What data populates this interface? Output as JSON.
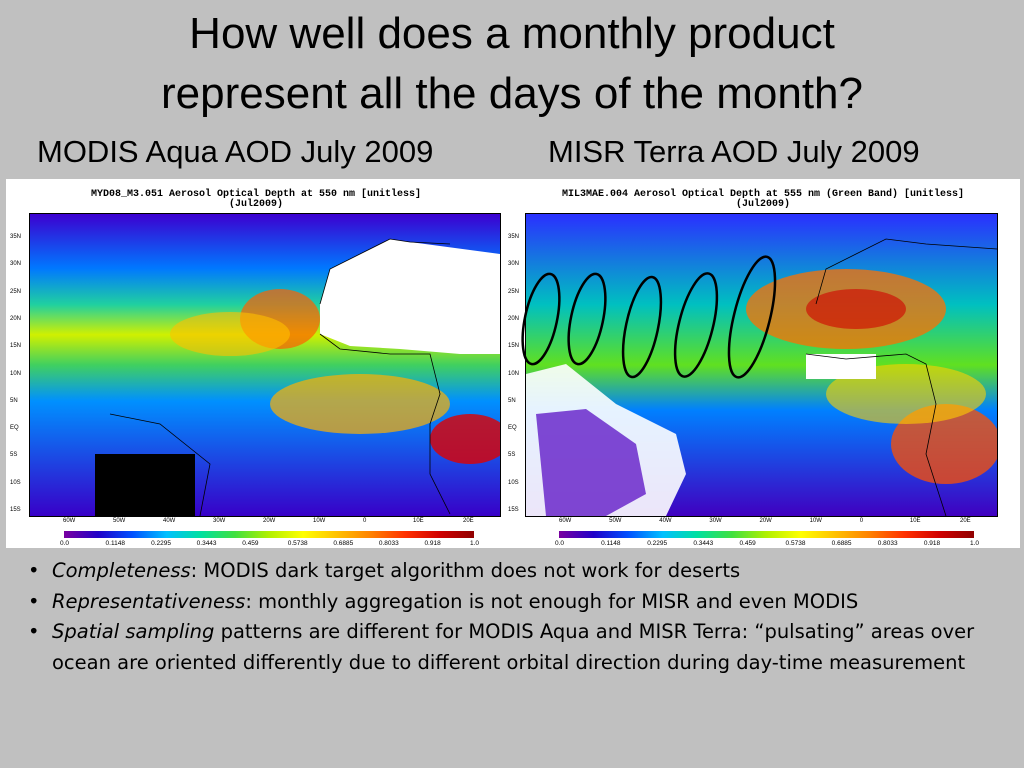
{
  "title_line1": "How well does a monthly product",
  "title_line2": "represent all the days of the month?",
  "left_label": "MODIS Aqua AOD July 2009",
  "right_label": "MISR Terra AOD July 2009",
  "left_map": {
    "title": "MYD08_M3.051 Aerosol Optical Depth at 550 nm [unitless]",
    "period": "(Jul2009)"
  },
  "right_map": {
    "title": "MIL3MAE.004 Aerosol Optical Depth at 555 nm (Green Band) [unitless]",
    "period": "(Jul2009)"
  },
  "lat_labels": [
    "35N",
    "30N",
    "25N",
    "20N",
    "15N",
    "10N",
    "5N",
    "EQ",
    "5S",
    "10S",
    "15S"
  ],
  "lon_labels": [
    "60W",
    "50W",
    "40W",
    "30W",
    "20W",
    "10W",
    "0",
    "10E",
    "20E"
  ],
  "colorbar_ticks": [
    "0.0",
    "0.1148",
    "0.2295",
    "0.3443",
    "0.459",
    "0.5738",
    "0.6885",
    "0.8033",
    "0.918",
    "1.0"
  ],
  "bullets": [
    {
      "italic": "Completeness",
      "rest": ": MODIS dark target algorithm does not work for deserts"
    },
    {
      "italic": "Representativeness",
      "rest": ": monthly aggregation is not enough for MISR and even MODIS"
    },
    {
      "italic": "Spatial sampling",
      "rest": " patterns are different for MODIS Aqua and MISR Terra: “pulsating” areas over ocean are oriented differently due to different orbital direction during day-time measurement"
    }
  ]
}
